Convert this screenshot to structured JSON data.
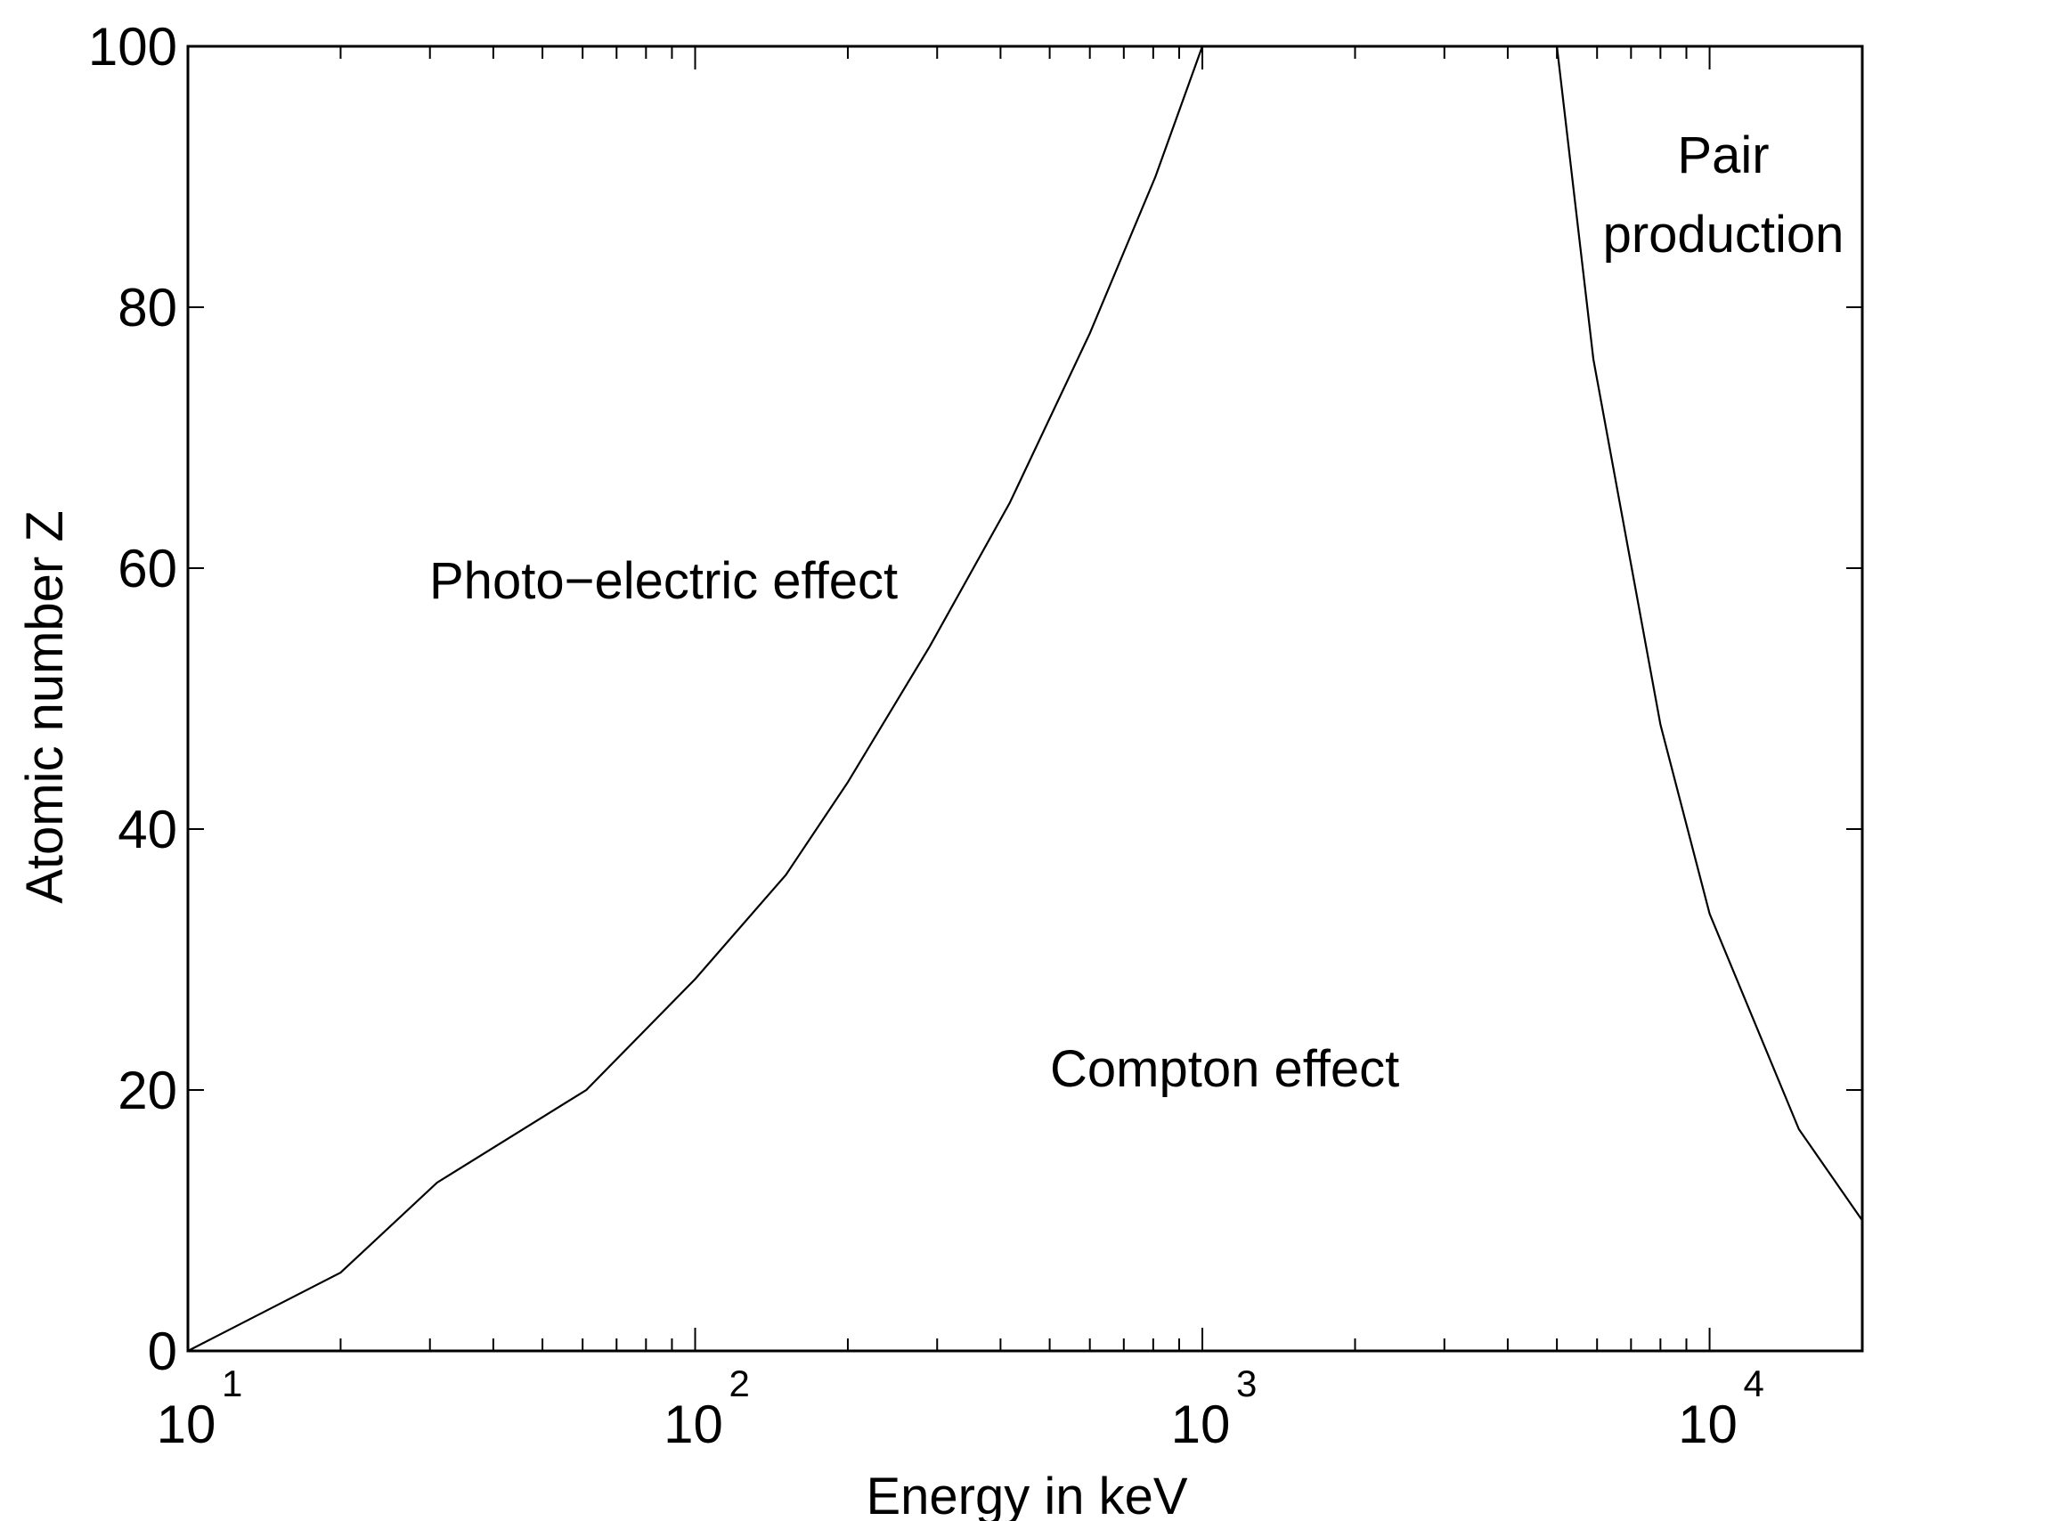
{
  "chart_data": {
    "type": "line",
    "title": "",
    "xlabel": "Energy in keV",
    "ylabel": "Atomic number Z",
    "xscale": "log",
    "xlim": [
      10,
      20000
    ],
    "ylim": [
      0,
      100
    ],
    "grid": false,
    "x_ticks": [
      {
        "base": "10",
        "exp": "1",
        "value": 10
      },
      {
        "base": "10",
        "exp": "2",
        "value": 100
      },
      {
        "base": "10",
        "exp": "3",
        "value": 1000
      },
      {
        "base": "10",
        "exp": "4",
        "value": 10000
      }
    ],
    "y_ticks": [
      "0",
      "20",
      "40",
      "60",
      "80",
      "100"
    ],
    "series": [
      {
        "x": [
          10,
          20,
          31,
          61,
          100,
          151,
          200,
          290,
          417,
          600,
          808,
          1000
        ],
        "y": [
          0,
          6,
          12.9,
          20,
          28.5,
          36.5,
          43.6,
          54,
          65,
          78,
          90,
          100
        ]
      },
      {
        "x": [
          5000,
          5900,
          8000,
          10000,
          15000,
          20000
        ],
        "y": [
          100,
          76,
          48,
          33.5,
          17,
          10
        ]
      }
    ],
    "annotations": [
      {
        "id": "photo",
        "lines": [
          "Photo−electric effect"
        ]
      },
      {
        "id": "compton",
        "lines": [
          "Compton effect"
        ]
      },
      {
        "id": "pair",
        "lines": [
          "Pair",
          "production"
        ]
      }
    ],
    "line_color": "#000000"
  }
}
